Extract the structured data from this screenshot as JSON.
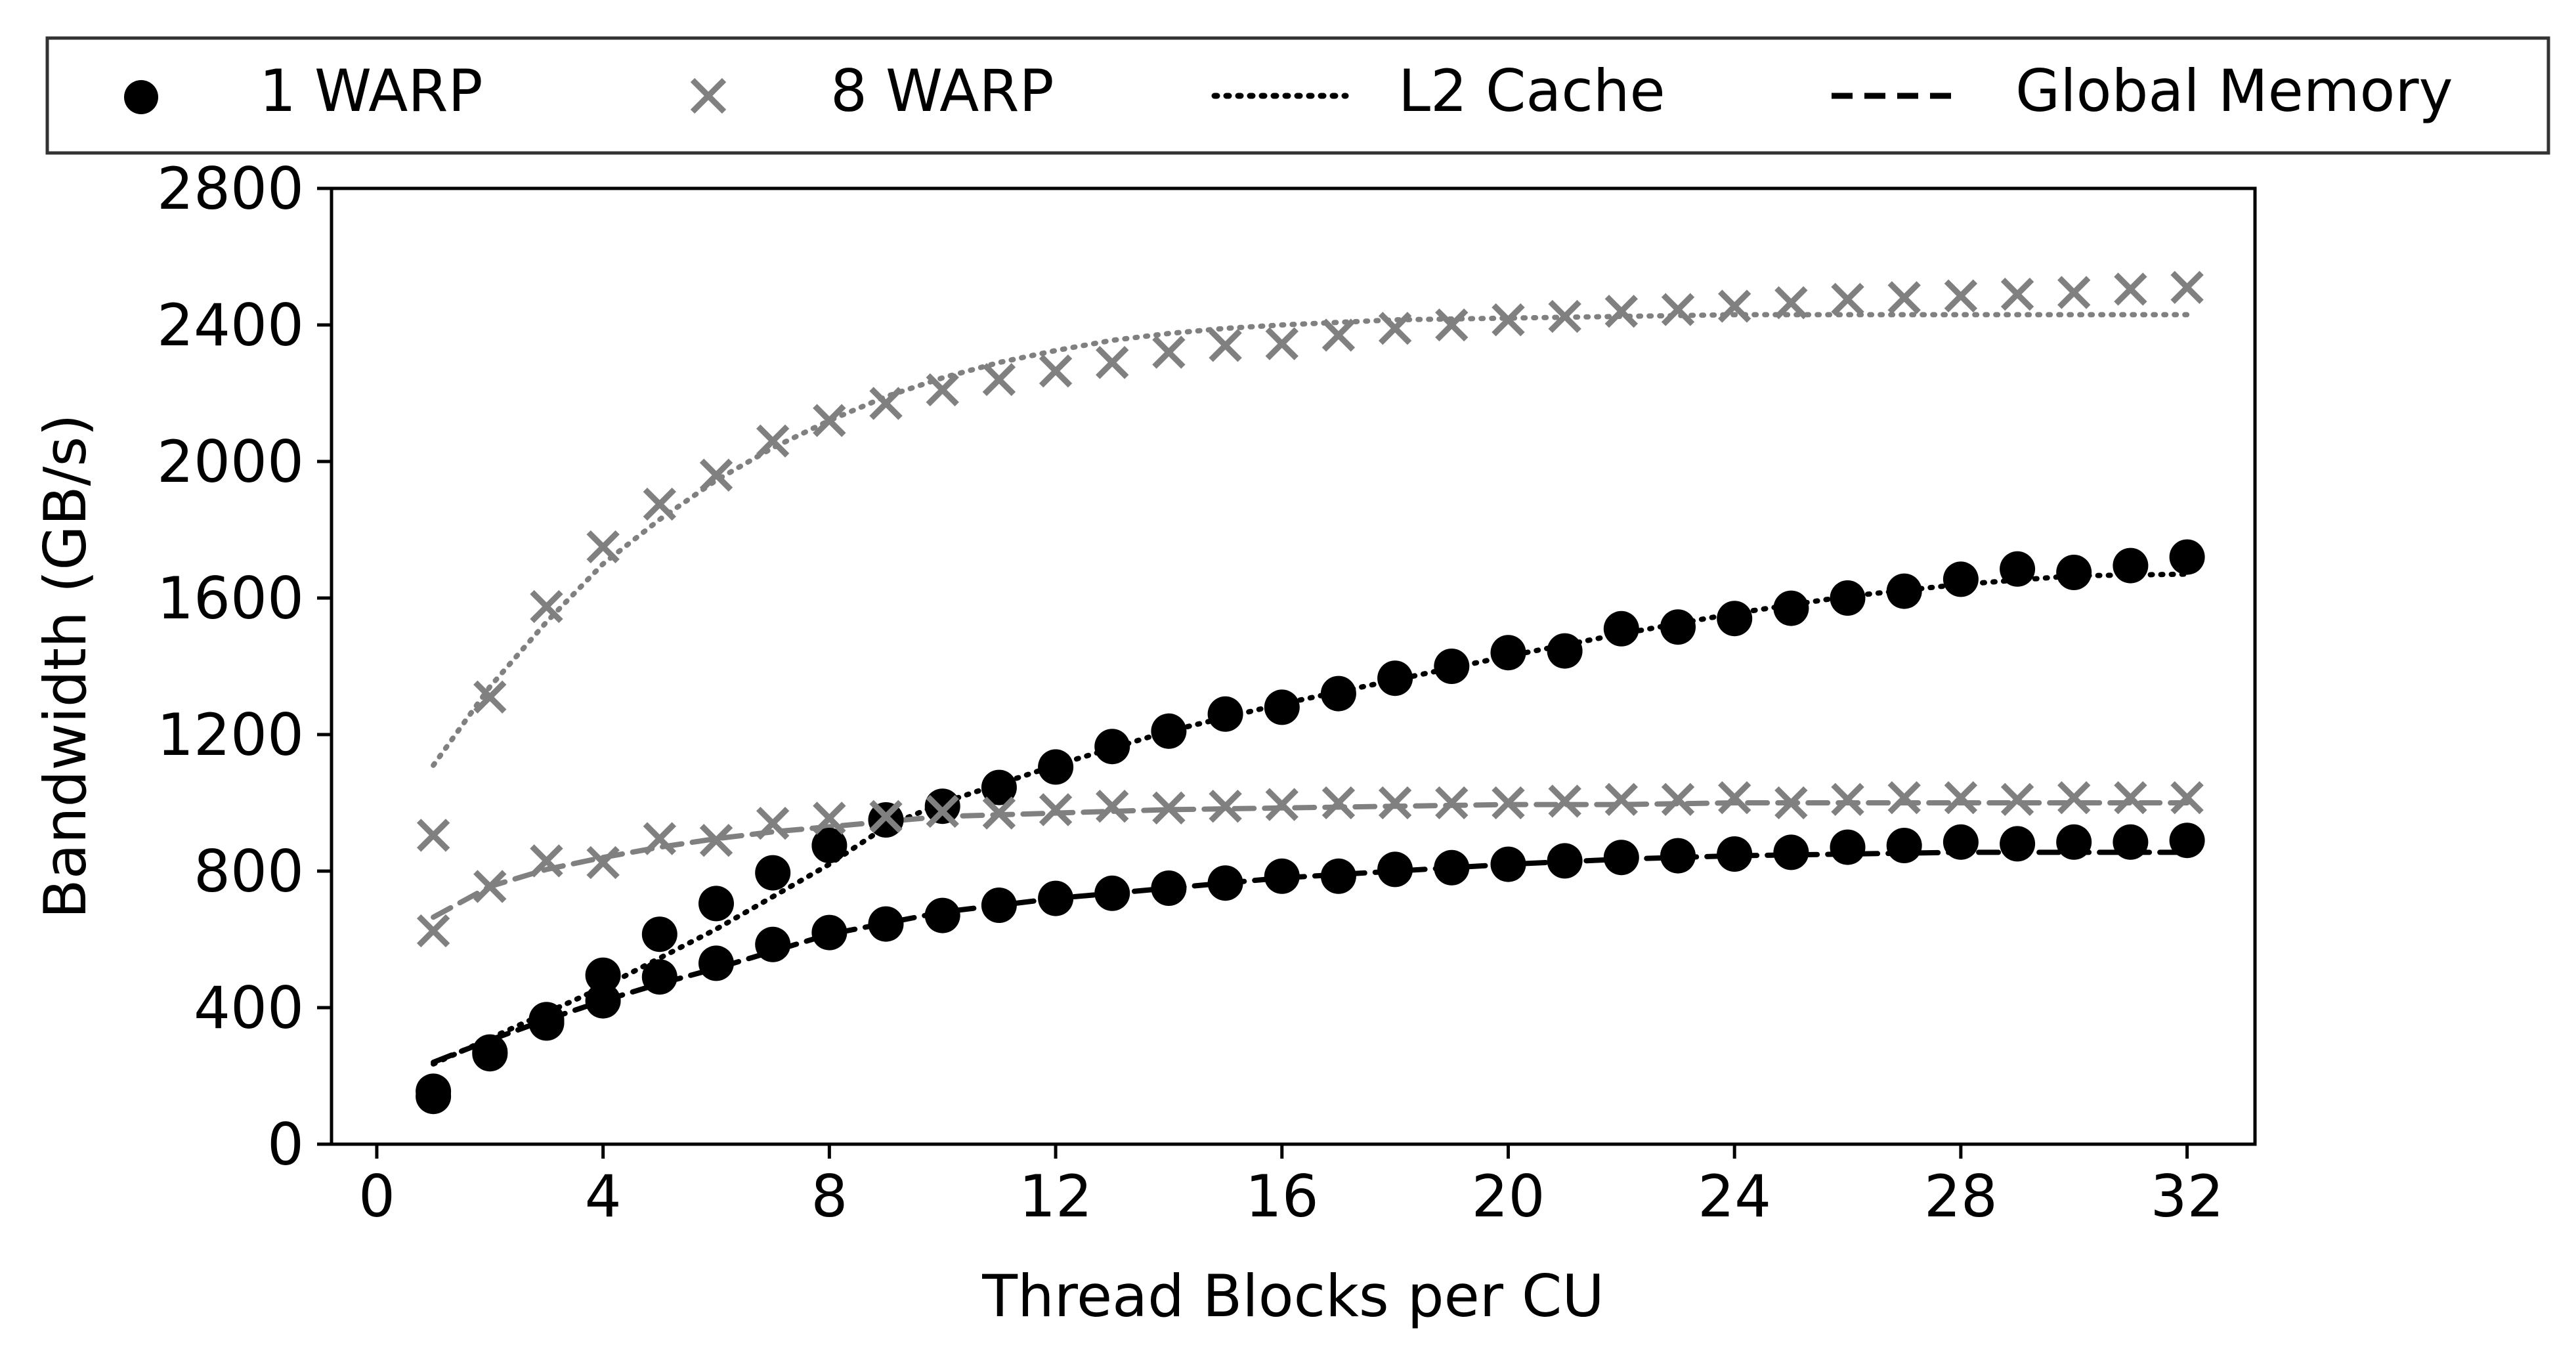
{
  "chart_data": {
    "type": "scatter",
    "xlabel": "Thread Blocks per CU",
    "ylabel": "Bandwidth (GB/s)",
    "xlim": [
      -0.8,
      33.2
    ],
    "ylim": [
      0,
      2800
    ],
    "xticks": [
      0,
      4,
      8,
      12,
      16,
      20,
      24,
      28,
      32
    ],
    "yticks": [
      0,
      400,
      800,
      1200,
      1600,
      2000,
      2400,
      2800
    ],
    "grid": false,
    "legend_position": "top, above plot",
    "legend": [
      {
        "label": "1 WARP",
        "kind": "circle-marker",
        "color": "#000000"
      },
      {
        "label": "8 WARP",
        "kind": "x-marker",
        "color": "#808080"
      },
      {
        "label": "L2 Cache",
        "kind": "dotted-line",
        "color": "#000000"
      },
      {
        "label": "Global Memory",
        "kind": "dashed-line",
        "color": "#000000"
      }
    ],
    "x": [
      1,
      2,
      3,
      4,
      5,
      6,
      7,
      8,
      9,
      10,
      11,
      12,
      13,
      14,
      15,
      16,
      17,
      18,
      19,
      20,
      21,
      22,
      23,
      24,
      25,
      26,
      27,
      28,
      29,
      30,
      31,
      32
    ],
    "series": [
      {
        "name": "1 WARP",
        "memory": "L2 Cache",
        "marker": "circle",
        "color": "#000000",
        "values": [
          155,
          270,
          365,
          495,
          615,
          705,
          795,
          875,
          950,
          990,
          1045,
          1105,
          1165,
          1210,
          1260,
          1280,
          1320,
          1365,
          1400,
          1440,
          1445,
          1510,
          1515,
          1540,
          1570,
          1600,
          1620,
          1655,
          1685,
          1675,
          1695,
          1720
        ]
      },
      {
        "name": "1 WARP",
        "memory": "Global Memory",
        "marker": "circle",
        "color": "#000000",
        "values": [
          140,
          265,
          355,
          420,
          490,
          530,
          585,
          620,
          645,
          670,
          700,
          720,
          735,
          750,
          765,
          785,
          785,
          805,
          810,
          820,
          830,
          840,
          845,
          850,
          855,
          870,
          875,
          885,
          880,
          885,
          885,
          890
        ]
      },
      {
        "name": "8 WARP",
        "memory": "L2 Cache",
        "marker": "x",
        "color": "#808080",
        "values": [
          905,
          1310,
          1575,
          1750,
          1875,
          1960,
          2060,
          2120,
          2170,
          2210,
          2240,
          2265,
          2290,
          2320,
          2340,
          2345,
          2370,
          2390,
          2400,
          2415,
          2425,
          2440,
          2445,
          2455,
          2465,
          2475,
          2480,
          2485,
          2490,
          2495,
          2505,
          2510
        ]
      },
      {
        "name": "8 WARP",
        "memory": "Global Memory",
        "marker": "x",
        "color": "#808080",
        "values": [
          625,
          755,
          830,
          825,
          895,
          890,
          940,
          955,
          960,
          975,
          970,
          980,
          990,
          985,
          990,
          995,
          1000,
          1000,
          1000,
          1000,
          1005,
          1010,
          1010,
          1015,
          1000,
          1010,
          1015,
          1015,
          1010,
          1015,
          1015,
          1015
        ]
      }
    ],
    "fit_lines": [
      {
        "memory": "L2 Cache",
        "style": "dotted",
        "color": "#000000",
        "x": [
          1,
          2,
          4,
          6,
          8,
          9,
          10,
          12,
          14,
          16,
          18,
          20,
          22,
          24,
          26,
          28,
          30,
          32
        ],
        "values": [
          235,
          310,
          460,
          630,
          820,
          930,
          1000,
          1110,
          1210,
          1290,
          1360,
          1430,
          1495,
          1555,
          1605,
          1640,
          1665,
          1670
        ]
      },
      {
        "memory": "Global Memory",
        "style": "dashed",
        "color": "#000000",
        "x": [
          1,
          2,
          3,
          4,
          5,
          6,
          7,
          8,
          10,
          12,
          14,
          16,
          18,
          20,
          22,
          24,
          26,
          28,
          30,
          32
        ],
        "values": [
          240,
          305,
          365,
          420,
          470,
          515,
          565,
          615,
          680,
          720,
          750,
          780,
          800,
          820,
          835,
          845,
          850,
          855,
          855,
          855
        ]
      },
      {
        "memory": "L2 Cache",
        "style": "dotted",
        "color": "#808080",
        "x": [
          1,
          2,
          3,
          4,
          5,
          6,
          7,
          8,
          9,
          10,
          11,
          12,
          13,
          14,
          15,
          16,
          18,
          20,
          22,
          24,
          26,
          28,
          30,
          32
        ],
        "values": [
          1110,
          1340,
          1530,
          1700,
          1830,
          1945,
          2040,
          2120,
          2190,
          2245,
          2290,
          2325,
          2355,
          2375,
          2390,
          2400,
          2415,
          2420,
          2425,
          2430,
          2430,
          2430,
          2430,
          2430
        ]
      },
      {
        "memory": "Global Memory",
        "style": "dashed",
        "color": "#808080",
        "x": [
          1,
          2,
          3,
          4,
          5,
          6,
          7,
          8,
          9,
          10,
          12,
          14,
          16,
          18,
          20,
          22,
          24,
          26,
          28,
          30,
          32
        ],
        "values": [
          665,
          755,
          805,
          840,
          870,
          895,
          915,
          930,
          945,
          960,
          970,
          980,
          985,
          990,
          995,
          995,
          1000,
          1000,
          1000,
          1000,
          1000
        ]
      }
    ]
  }
}
